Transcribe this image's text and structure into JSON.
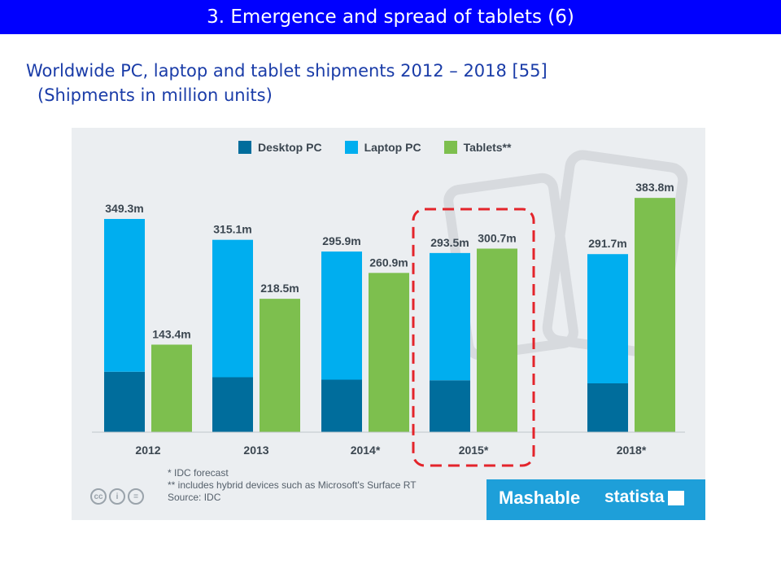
{
  "slide": {
    "title": "3. Emergence and spread of tablets (6)",
    "subtitle_line1": "Worldwide PC, laptop and tablet shipments 2012 – 2018 [55]",
    "subtitle_line2": "(Shipments in million units)"
  },
  "chart_data": {
    "type": "bar",
    "categories": [
      "2012",
      "2013",
      "2014*",
      "2015*",
      "2018*"
    ],
    "series": [
      {
        "name": "Desktop PC",
        "color": "#006d9c",
        "values": [
          99,
          90,
          86,
          85,
          80
        ]
      },
      {
        "name": "Laptop PC",
        "color": "#00aeef",
        "values": [
          250.3,
          225.1,
          209.9,
          208.5,
          211.7
        ]
      },
      {
        "name": "Tablets**",
        "color": "#7dbf4e",
        "values": [
          143.4,
          218.5,
          260.9,
          300.7,
          383.8
        ]
      }
    ],
    "stacked_series": [
      "Desktop PC",
      "Laptop PC"
    ],
    "labels": {
      "pc_totals": [
        "349.3m",
        "315.1m",
        "295.9m",
        "293.5m",
        "291.7m"
      ],
      "tablets": [
        "143.4m",
        "218.5m",
        "260.9m",
        "300.7m",
        "383.8m"
      ]
    },
    "highlighted_category": "2015*",
    "highlight_color": "#e3242b",
    "ylim": [
      0,
      400
    ],
    "grid": false,
    "legend_position": "top-center",
    "footnotes": [
      "* IDC forecast",
      "** includes hybrid devices such as Microsoft's Surface RT",
      "Source: IDC"
    ]
  },
  "branding": {
    "mashable": "Mashable",
    "statista": "statista",
    "cc_icons": [
      "cc-icon",
      "by-icon",
      "nd-icon"
    ],
    "cc_glyphs": [
      "cc",
      "i",
      "="
    ]
  },
  "colors": {
    "title_bar": "#0000ff",
    "subtitle": "#1a3ca8",
    "card_bg": "#ebeef1",
    "brand_strip": "#1e9fd9"
  }
}
